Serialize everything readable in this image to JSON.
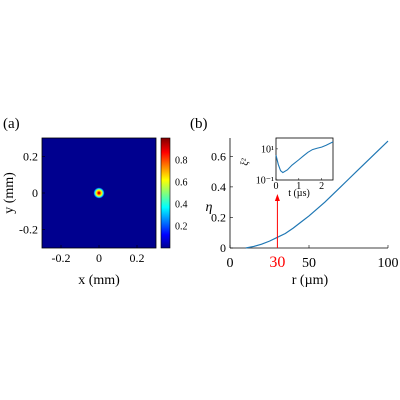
{
  "chart_data": [
    {
      "panel": "(a)",
      "type": "heatmap",
      "title": "",
      "xlabel": "x (mm)",
      "ylabel": "y (mm)",
      "xlim": [
        -0.3,
        0.3
      ],
      "ylim": [
        -0.3,
        0.3
      ],
      "x_ticks": [
        "-0.2",
        "0",
        "0.2"
      ],
      "y_ticks": [
        "0.2",
        "0",
        "-0.2"
      ],
      "colormap": "jet",
      "colorbar": {
        "min": 0,
        "max": 1,
        "ticks": [
          "0.8",
          "0.6",
          "0.4",
          "0.2"
        ]
      },
      "spot": {
        "center_x": 0,
        "center_y": 0,
        "radius_mm": 0.03,
        "peak": 1
      }
    },
    {
      "panel": "(b)",
      "type": "line",
      "title": "",
      "xlabel": "r (µm)",
      "ylabel": "η",
      "xlim": [
        0,
        100
      ],
      "ylim": [
        0,
        0.72
      ],
      "x_ticks": [
        "0",
        "50",
        "100"
      ],
      "y_ticks": [
        "0",
        "0.2",
        "0.4",
        "0.6"
      ],
      "line_color": "#1f77b4",
      "x": [
        10,
        15,
        20,
        25,
        30,
        35,
        40,
        45,
        50,
        55,
        60,
        65,
        70,
        75,
        80,
        85,
        90,
        95,
        100
      ],
      "y": [
        0.0,
        0.01,
        0.025,
        0.045,
        0.07,
        0.095,
        0.13,
        0.17,
        0.21,
        0.255,
        0.3,
        0.35,
        0.4,
        0.45,
        0.5,
        0.55,
        0.6,
        0.65,
        0.7
      ],
      "highlight": {
        "x": 30,
        "label": "30",
        "color": "#ff0000"
      },
      "inset": {
        "type": "line",
        "xlabel": "t (µs)",
        "ylabel": "ξ²",
        "xlim": [
          0,
          2.5
        ],
        "ylim_log": [
          0.1,
          50
        ],
        "y_scale": "log",
        "x_ticks": [
          "0",
          "1",
          "2"
        ],
        "y_ticks": [
          "10¹",
          "10⁻¹"
        ],
        "x": [
          0,
          0.1,
          0.2,
          0.3,
          0.5,
          0.7,
          1.0,
          1.2,
          1.4,
          1.6,
          1.8,
          2.0,
          2.2,
          2.5
        ],
        "y": [
          4,
          1.0,
          0.4,
          0.3,
          0.45,
          0.9,
          2.0,
          3.5,
          6,
          9,
          11,
          13,
          17,
          28
        ]
      }
    }
  ]
}
